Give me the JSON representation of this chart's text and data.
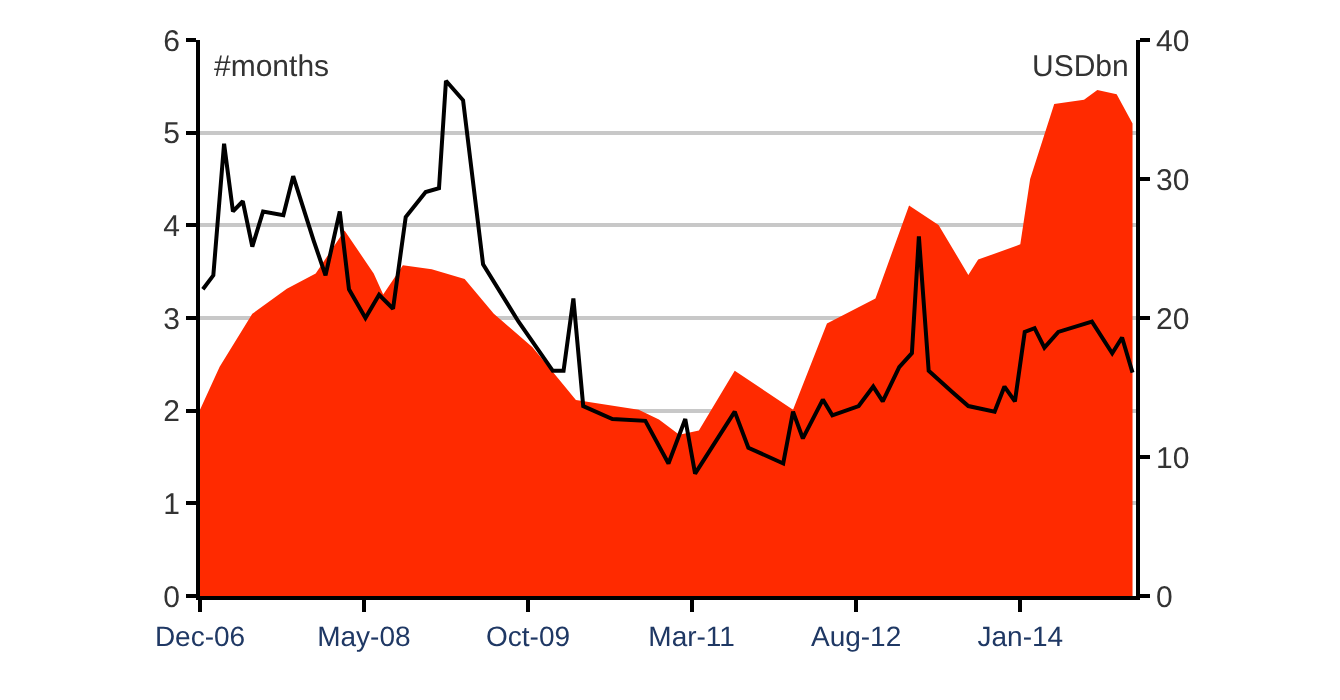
{
  "chart_data": {
    "type": "line",
    "ylabel": "#months",
    "y2label": "USDbn",
    "xlim": [
      "2006-12-01",
      "2015-01-01"
    ],
    "xticks": [
      {
        "value": "2006-12-01",
        "label": "Dec-06"
      },
      {
        "value": "2008-05-01",
        "label": "May-08"
      },
      {
        "value": "2009-10-01",
        "label": "Oct-09"
      },
      {
        "value": "2011-03-01",
        "label": "Mar-11"
      },
      {
        "value": "2012-08-01",
        "label": "Aug-12"
      },
      {
        "value": "2014-01-01",
        "label": "Jan-14"
      }
    ],
    "ylim": [
      0,
      6
    ],
    "yticks": [
      0,
      1,
      2,
      3,
      4,
      5,
      6
    ],
    "y2lim": [
      0,
      40
    ],
    "y2ticks": [
      0,
      10,
      20,
      30,
      40
    ],
    "grid": "y",
    "series": [
      {
        "type": "area",
        "axis": "y2",
        "color": "#ff2a00",
        "x": [
          "2006-12-01",
          "2007-02-01",
          "2007-05-15",
          "2007-09-01",
          "2007-12-01",
          "2008-03-01",
          "2008-06-01",
          "2008-07-01",
          "2008-09-01",
          "2008-12-01",
          "2009-03-15",
          "2009-06-15",
          "2009-10-15",
          "2010-03-01",
          "2010-09-15",
          "2010-11-18",
          "2011-01-21",
          "2011-03-24",
          "2011-07-15",
          "2012-01-15",
          "2012-05-01",
          "2012-10-01",
          "2013-01-15",
          "2013-04-18",
          "2013-07-21",
          "2013-08-21",
          "2014-01-01",
          "2014-02-01",
          "2014-04-18",
          "2014-07-21",
          "2014-09-01",
          "2014-11-01",
          "2014-12-21"
        ],
        "values": [
          13.4,
          16.5,
          20.3,
          22.1,
          23.2,
          26.3,
          23.2,
          21.7,
          23.8,
          23.5,
          22.8,
          20.3,
          17.9,
          14.1,
          13.4,
          12.7,
          11.6,
          11.9,
          16.2,
          13.4,
          19.6,
          21.4,
          28.1,
          26.7,
          23.1,
          24.2,
          25.3,
          30,
          35.4,
          35.7,
          36.4,
          36.1,
          34
        ]
      },
      {
        "axis": "y",
        "color": "#000000",
        "x": [
          "2006-12-10",
          "2007-01-12",
          "2007-02-15",
          "2007-03-15",
          "2007-04-15",
          "2007-05-15",
          "2007-06-18",
          "2007-08-21",
          "2007-09-21",
          "2007-11-24",
          "2008-01-01",
          "2008-02-15",
          "2008-03-15",
          "2008-05-06",
          "2008-06-18",
          "2008-08-01",
          "2008-09-10",
          "2008-11-12",
          "2008-12-24",
          "2009-01-15",
          "2009-03-10",
          "2009-05-12",
          "2009-09-01",
          "2009-12-18",
          "2010-01-21",
          "2010-02-21",
          "2010-03-24",
          "2010-06-24",
          "2010-10-06",
          "2010-12-18",
          "2011-02-09",
          "2011-03-12",
          "2011-07-15",
          "2011-08-27",
          "2011-12-15",
          "2012-01-15",
          "2012-02-15",
          "2012-04-18",
          "2012-05-18",
          "2012-08-09",
          "2012-09-24",
          "2012-10-24",
          "2012-12-15",
          "2013-01-24",
          "2013-02-15",
          "2013-03-18",
          "2013-06-01",
          "2013-07-21",
          "2013-10-12",
          "2013-11-12",
          "2013-12-15",
          "2014-01-15",
          "2014-02-15",
          "2014-03-18",
          "2014-05-01",
          "2014-08-15",
          "2014-10-18",
          "2014-11-18",
          "2014-12-21"
        ],
        "values": [
          3.31,
          3.46,
          4.88,
          4.15,
          4.26,
          3.77,
          4.15,
          4.11,
          4.53,
          3.84,
          3.46,
          4.15,
          3.31,
          3.0,
          3.25,
          3.1,
          4.09,
          4.36,
          4.4,
          5.56,
          5.35,
          3.58,
          2.96,
          2.43,
          2.43,
          3.21,
          2.05,
          1.91,
          1.89,
          1.43,
          1.91,
          1.32,
          1.99,
          1.6,
          1.43,
          1.99,
          1.7,
          2.12,
          1.95,
          2.05,
          2.26,
          2.1,
          2.47,
          2.62,
          3.88,
          2.43,
          2.2,
          2.05,
          1.99,
          2.26,
          2.1,
          2.85,
          2.89,
          2.68,
          2.85,
          2.96,
          2.62,
          2.79,
          2.41
        ]
      }
    ]
  }
}
